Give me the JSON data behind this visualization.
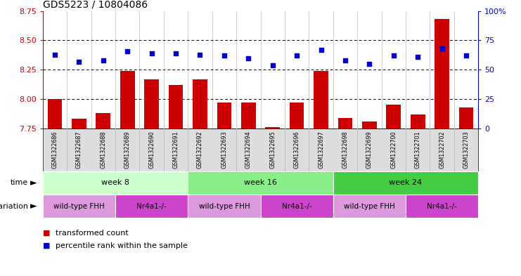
{
  "title": "GDS5223 / 10804086",
  "samples": [
    "GSM1322686",
    "GSM1322687",
    "GSM1322688",
    "GSM1322689",
    "GSM1322690",
    "GSM1322691",
    "GSM1322692",
    "GSM1322693",
    "GSM1322694",
    "GSM1322695",
    "GSM1322696",
    "GSM1322697",
    "GSM1322698",
    "GSM1322699",
    "GSM1322700",
    "GSM1322701",
    "GSM1322702",
    "GSM1322703"
  ],
  "transformed_count": [
    8.0,
    7.83,
    7.88,
    8.24,
    8.17,
    8.12,
    8.17,
    7.97,
    7.97,
    7.76,
    7.97,
    8.24,
    7.84,
    7.81,
    7.95,
    7.87,
    8.68,
    7.93
  ],
  "percentile_rank": [
    63,
    57,
    58,
    66,
    64,
    64,
    63,
    62,
    60,
    54,
    62,
    67,
    58,
    55,
    62,
    61,
    68,
    62
  ],
  "ylim_left": [
    7.75,
    8.75
  ],
  "ylim_right": [
    0,
    100
  ],
  "yticks_left": [
    7.75,
    8.0,
    8.25,
    8.5,
    8.75
  ],
  "yticks_right": [
    0,
    25,
    50,
    75,
    100
  ],
  "bar_color": "#cc0000",
  "dot_color": "#0000cc",
  "time_groups": [
    {
      "label": "week 8",
      "start": 0,
      "end": 6,
      "color": "#ccffcc"
    },
    {
      "label": "week 16",
      "start": 6,
      "end": 12,
      "color": "#88ee88"
    },
    {
      "label": "week 24",
      "start": 12,
      "end": 18,
      "color": "#44cc44"
    }
  ],
  "genotype_groups": [
    {
      "label": "wild-type FHH",
      "start": 0,
      "end": 3,
      "color": "#dd99dd"
    },
    {
      "label": "Nr4a1-/-",
      "start": 3,
      "end": 6,
      "color": "#cc44cc"
    },
    {
      "label": "wild-type FHH",
      "start": 6,
      "end": 9,
      "color": "#dd99dd"
    },
    {
      "label": "Nr4a1-/-",
      "start": 9,
      "end": 12,
      "color": "#cc44cc"
    },
    {
      "label": "wild-type FHH",
      "start": 12,
      "end": 15,
      "color": "#dd99dd"
    },
    {
      "label": "Nr4a1-/-",
      "start": 15,
      "end": 18,
      "color": "#cc44cc"
    }
  ],
  "legend_bar_label": "transformed count",
  "legend_dot_label": "percentile rank within the sample",
  "time_label": "time",
  "grid_lines": [
    8.0,
    8.25,
    8.5
  ],
  "sample_bg_color": "#dddddd",
  "separator_color": "#bbbbbb"
}
